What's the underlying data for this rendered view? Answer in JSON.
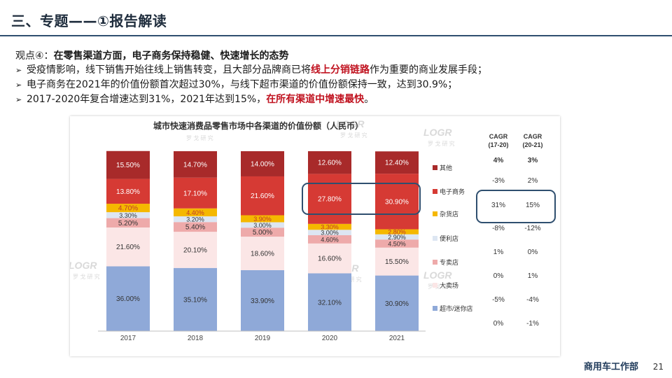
{
  "slide": {
    "title": "三、专题——①报告解读",
    "viewpoint_prefix": "观点④：",
    "viewpoint_bold": "在零售渠道方面，电子商务保持稳健、快速增长的态势",
    "bullet_mark": "➢",
    "bullets": [
      {
        "pre": "受疫情影响，线下销售开始往线上销售转变，且大部分品牌商已将",
        "hl": "线上分销链路",
        "post": "作为重要的商业发展手段；"
      },
      {
        "pre": "电子商务在2021年的价值份额首次超过30%，与线下超市渠道的价值份额保持一致，达到30.9%；",
        "hl": "",
        "post": ""
      },
      {
        "pre": "2017-2020年复合增速达到31%，2021年达到15%，",
        "hl": "在所有渠道中增速最快",
        "post": "。"
      }
    ],
    "footer_dept": "商用车工作部",
    "page_number": "21",
    "watermark_text": "LOGR",
    "watermark_sub": "罗 戈 研 究"
  },
  "chart_data": {
    "type": "bar",
    "stacked": true,
    "title": "城市快速消费品零售市场中各渠道的价值份额（人民币）",
    "categories": [
      "2017",
      "2018",
      "2019",
      "2020",
      "2021"
    ],
    "series": [
      {
        "name": "超市/迷你店",
        "color": "#8fa9d8",
        "values": [
          36.0,
          35.1,
          33.9,
          32.1,
          30.9
        ],
        "labels": [
          "36.00%",
          "35.10%",
          "33.90%",
          "32.10%",
          "30.90%"
        ],
        "label_color": "#333333"
      },
      {
        "name": "大卖场",
        "color": "#fbe6e6",
        "values": [
          21.6,
          20.1,
          18.6,
          16.6,
          15.5
        ],
        "labels": [
          "21.60%",
          "20.10%",
          "18.60%",
          "16.60%",
          "15.50%"
        ],
        "label_color": "#333333"
      },
      {
        "name": "专卖店",
        "color": "#eeaaaa",
        "values": [
          5.2,
          5.4,
          5.0,
          4.6,
          4.5
        ],
        "labels": [
          "5.20%",
          "5.40%",
          "5.00%",
          "4.60%",
          "4.50%"
        ],
        "label_color": "#333333"
      },
      {
        "name": "便利店",
        "color": "#dde6f2",
        "values": [
          3.3,
          3.2,
          3.0,
          3.0,
          2.9
        ],
        "labels": [
          "3.30%",
          "3.20%",
          "3.00%",
          "3.00%",
          "2.90%"
        ],
        "label_color": "#333333"
      },
      {
        "name": "杂货店",
        "color": "#f5b800",
        "values": [
          4.7,
          4.4,
          3.9,
          3.3,
          2.8
        ],
        "labels": [
          "4.70%",
          "4.40%",
          "3.90%",
          "3.30%",
          "2.80%"
        ],
        "label_color": "#c0392b"
      },
      {
        "name": "电子商务",
        "color": "#d63a34",
        "values": [
          13.8,
          17.1,
          21.6,
          27.8,
          30.9
        ],
        "labels": [
          "13.80%",
          "17.10%",
          "21.60%",
          "27.80%",
          "30.90%"
        ],
        "label_color": "#ffffff"
      },
      {
        "name": "其他",
        "color": "#a82a2a",
        "values": [
          15.5,
          14.7,
          14.0,
          12.6,
          12.4
        ],
        "labels": [
          "15.50%",
          "14.70%",
          "14.00%",
          "12.60%",
          "12.40%"
        ],
        "label_color": "#ffffff"
      }
    ],
    "legend_order": [
      "其他",
      "电子商务",
      "杂货店",
      "便利店",
      "专卖店",
      "大卖场",
      "超市/迷你店"
    ],
    "legend_placement": "right",
    "cagr_table": {
      "headers": [
        [
          "CAGR",
          "(17-20)"
        ],
        [
          "CAGR",
          "(20-21)"
        ]
      ],
      "rows": [
        [
          "4%",
          "3%"
        ],
        [
          "-3%",
          "2%"
        ],
        [
          "31%",
          "15%"
        ],
        [
          "-8%",
          "-12%"
        ],
        [
          "1%",
          "0%"
        ],
        [
          "0%",
          "1%"
        ],
        [
          "-5%",
          "-4%"
        ],
        [
          "0%",
          "-1%"
        ]
      ]
    },
    "highlight_color": "#2f4f6f"
  }
}
